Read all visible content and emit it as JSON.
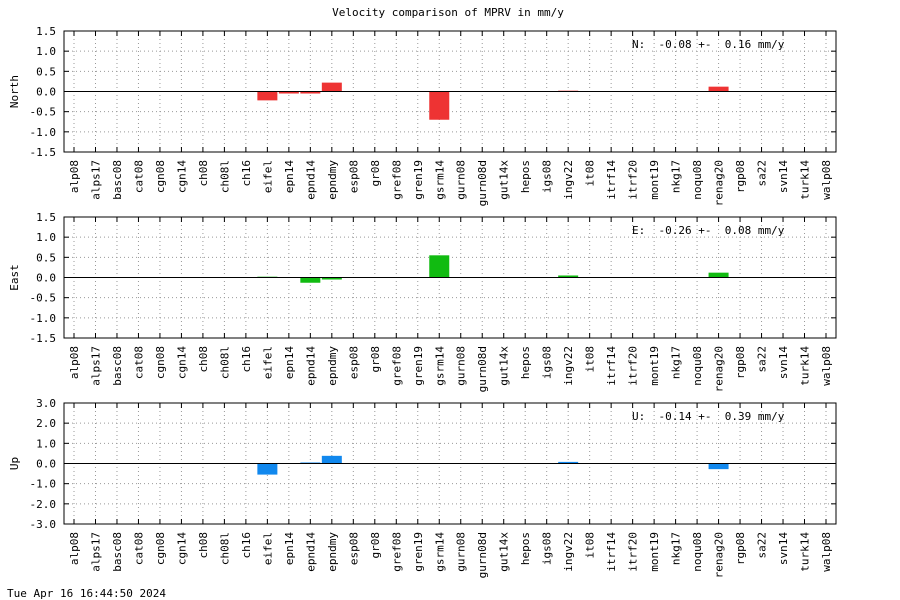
{
  "chart_data": [
    {
      "type": "bar",
      "title": "Velocity comparison of MPRV in mm/y",
      "ylabel": "North",
      "stats_label": "N:  -0.08 +-  0.16 mm/y",
      "ylim": [
        -1.5,
        1.5
      ],
      "yticks": [
        "1.5",
        "1.0",
        "0.5",
        "0.0",
        "-0.5",
        "-1.0",
        "-1.5"
      ],
      "grid": true,
      "color": "#ee3333",
      "categories": [
        "alp08",
        "alps17",
        "basc08",
        "cat08",
        "cgn08",
        "cgn14",
        "ch08",
        "ch08l",
        "ch16",
        "eifel",
        "epn14",
        "epnd14",
        "epndmy",
        "esp08",
        "gr08",
        "gref08",
        "gren19",
        "gsrm14",
        "gurn08",
        "gurn08d",
        "gut14x",
        "hepos",
        "igs08",
        "ingv22",
        "it08",
        "itrf14",
        "itrf20",
        "mont19",
        "nkg17",
        "noqu08",
        "renag20",
        "rgp08",
        "sa22",
        "svn14",
        "turk14",
        "walp08"
      ],
      "values": [
        0,
        0,
        0,
        0,
        0,
        0,
        0,
        0,
        0,
        -0.22,
        -0.05,
        -0.05,
        0.22,
        0,
        0,
        0,
        0,
        -0.7,
        0,
        0,
        0,
        0,
        0,
        0.02,
        0,
        0,
        0,
        0,
        0,
        0,
        0.12,
        0,
        0,
        0,
        0,
        0
      ]
    },
    {
      "type": "bar",
      "title": "",
      "ylabel": "East",
      "stats_label": "E:  -0.26 +-  0.08 mm/y",
      "ylim": [
        -1.5,
        1.5
      ],
      "yticks": [
        "1.5",
        "1.0",
        "0.5",
        "0.0",
        "-0.5",
        "-1.0",
        "-1.5"
      ],
      "grid": true,
      "color": "#11bb11",
      "categories": [
        "alp08",
        "alps17",
        "basc08",
        "cat08",
        "cgn08",
        "cgn14",
        "ch08",
        "ch08l",
        "ch16",
        "eifel",
        "epn14",
        "epnd14",
        "epndmy",
        "esp08",
        "gr08",
        "gref08",
        "gren19",
        "gsrm14",
        "gurn08",
        "gurn08d",
        "gut14x",
        "hepos",
        "igs08",
        "ingv22",
        "it08",
        "itrf14",
        "itrf20",
        "mont19",
        "nkg17",
        "noqu08",
        "renag20",
        "rgp08",
        "sa22",
        "svn14",
        "turk14",
        "walp08"
      ],
      "values": [
        0,
        0,
        0,
        0,
        0,
        0,
        0,
        0,
        0,
        0.02,
        0,
        -0.13,
        -0.05,
        0,
        0,
        0,
        0,
        0.55,
        0,
        0,
        0,
        0,
        0,
        0.05,
        0,
        0,
        0,
        0,
        0,
        0,
        0.12,
        0,
        0,
        0,
        0,
        0
      ]
    },
    {
      "type": "bar",
      "title": "",
      "ylabel": "Up",
      "stats_label": "U:  -0.14 +-  0.39 mm/y",
      "ylim": [
        -3.0,
        3.0
      ],
      "yticks": [
        "3.0",
        "2.0",
        "1.0",
        "0.0",
        "-1.0",
        "-2.0",
        "-3.0"
      ],
      "grid": true,
      "color": "#1188ee",
      "categories": [
        "alp08",
        "alps17",
        "basc08",
        "cat08",
        "cgn08",
        "cgn14",
        "ch08",
        "ch08l",
        "ch16",
        "eifel",
        "epn14",
        "epnd14",
        "epndmy",
        "esp08",
        "gr08",
        "gref08",
        "gren19",
        "gsrm14",
        "gurn08",
        "gurn08d",
        "gut14x",
        "hepos",
        "igs08",
        "ingv22",
        "it08",
        "itrf14",
        "itrf20",
        "mont19",
        "nkg17",
        "noqu08",
        "renag20",
        "rgp08",
        "sa22",
        "svn14",
        "turk14",
        "walp08"
      ],
      "values": [
        0,
        0,
        0,
        0,
        0,
        0,
        0,
        0,
        0,
        -0.55,
        0,
        0.05,
        0.38,
        0,
        0,
        0,
        0,
        0,
        0,
        0,
        0,
        0,
        0,
        0.08,
        0,
        0,
        0,
        0,
        0,
        0,
        -0.28,
        0,
        0,
        0,
        0,
        0
      ]
    }
  ],
  "footer": {
    "timestamp": "Tue Apr 16 16:44:50 2024"
  }
}
